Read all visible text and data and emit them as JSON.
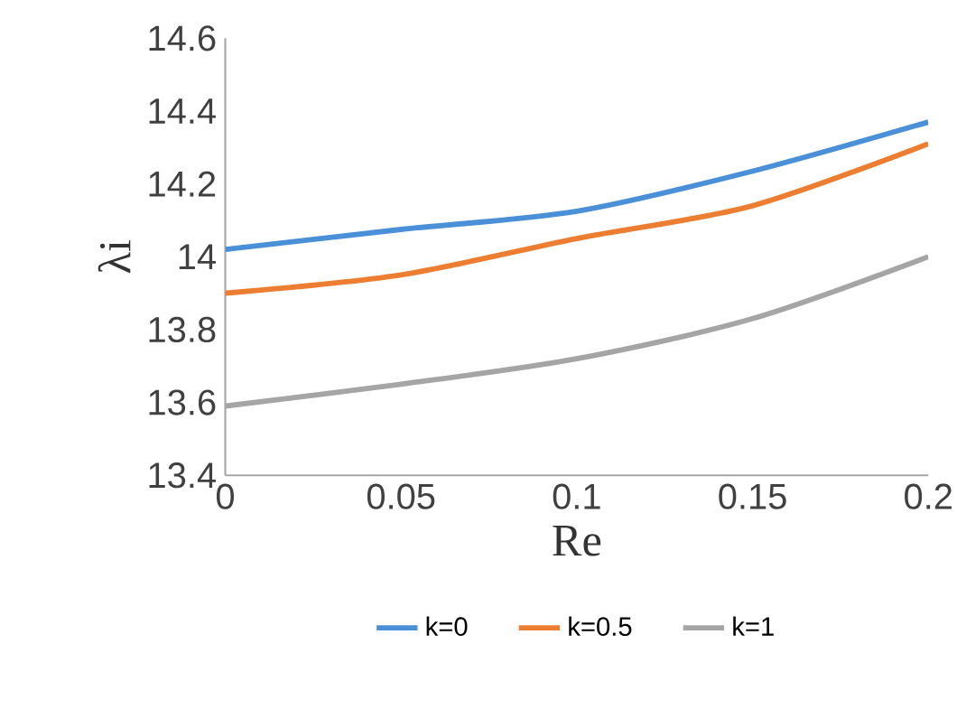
{
  "chart_data": {
    "type": "line",
    "xlabel": "Re",
    "ylabel": "λi",
    "x": [
      0,
      0.05,
      0.1,
      0.15,
      0.2
    ],
    "series": [
      {
        "name": "k=0",
        "color": "#4a90d9",
        "values": [
          14.02,
          14.075,
          14.125,
          14.235,
          14.37
        ]
      },
      {
        "name": "k=0.5",
        "color": "#ed7d31",
        "values": [
          13.9,
          13.95,
          14.05,
          14.14,
          14.31
        ]
      },
      {
        "name": "k=1",
        "color": "#a5a5a5",
        "values": [
          13.59,
          13.65,
          13.72,
          13.83,
          14.0
        ]
      }
    ],
    "xlim": [
      0,
      0.2
    ],
    "xticks": [
      0,
      0.05,
      0.1,
      0.15,
      0.2
    ],
    "ylim": [
      13.4,
      14.6
    ],
    "yticks": [
      13.4,
      13.6,
      13.8,
      {
        "value": 14,
        "label": "14"
      },
      14.2,
      14.4,
      14.6
    ],
    "grid": false,
    "legend": "bottom",
    "marker": "none",
    "line_style": "solid"
  }
}
